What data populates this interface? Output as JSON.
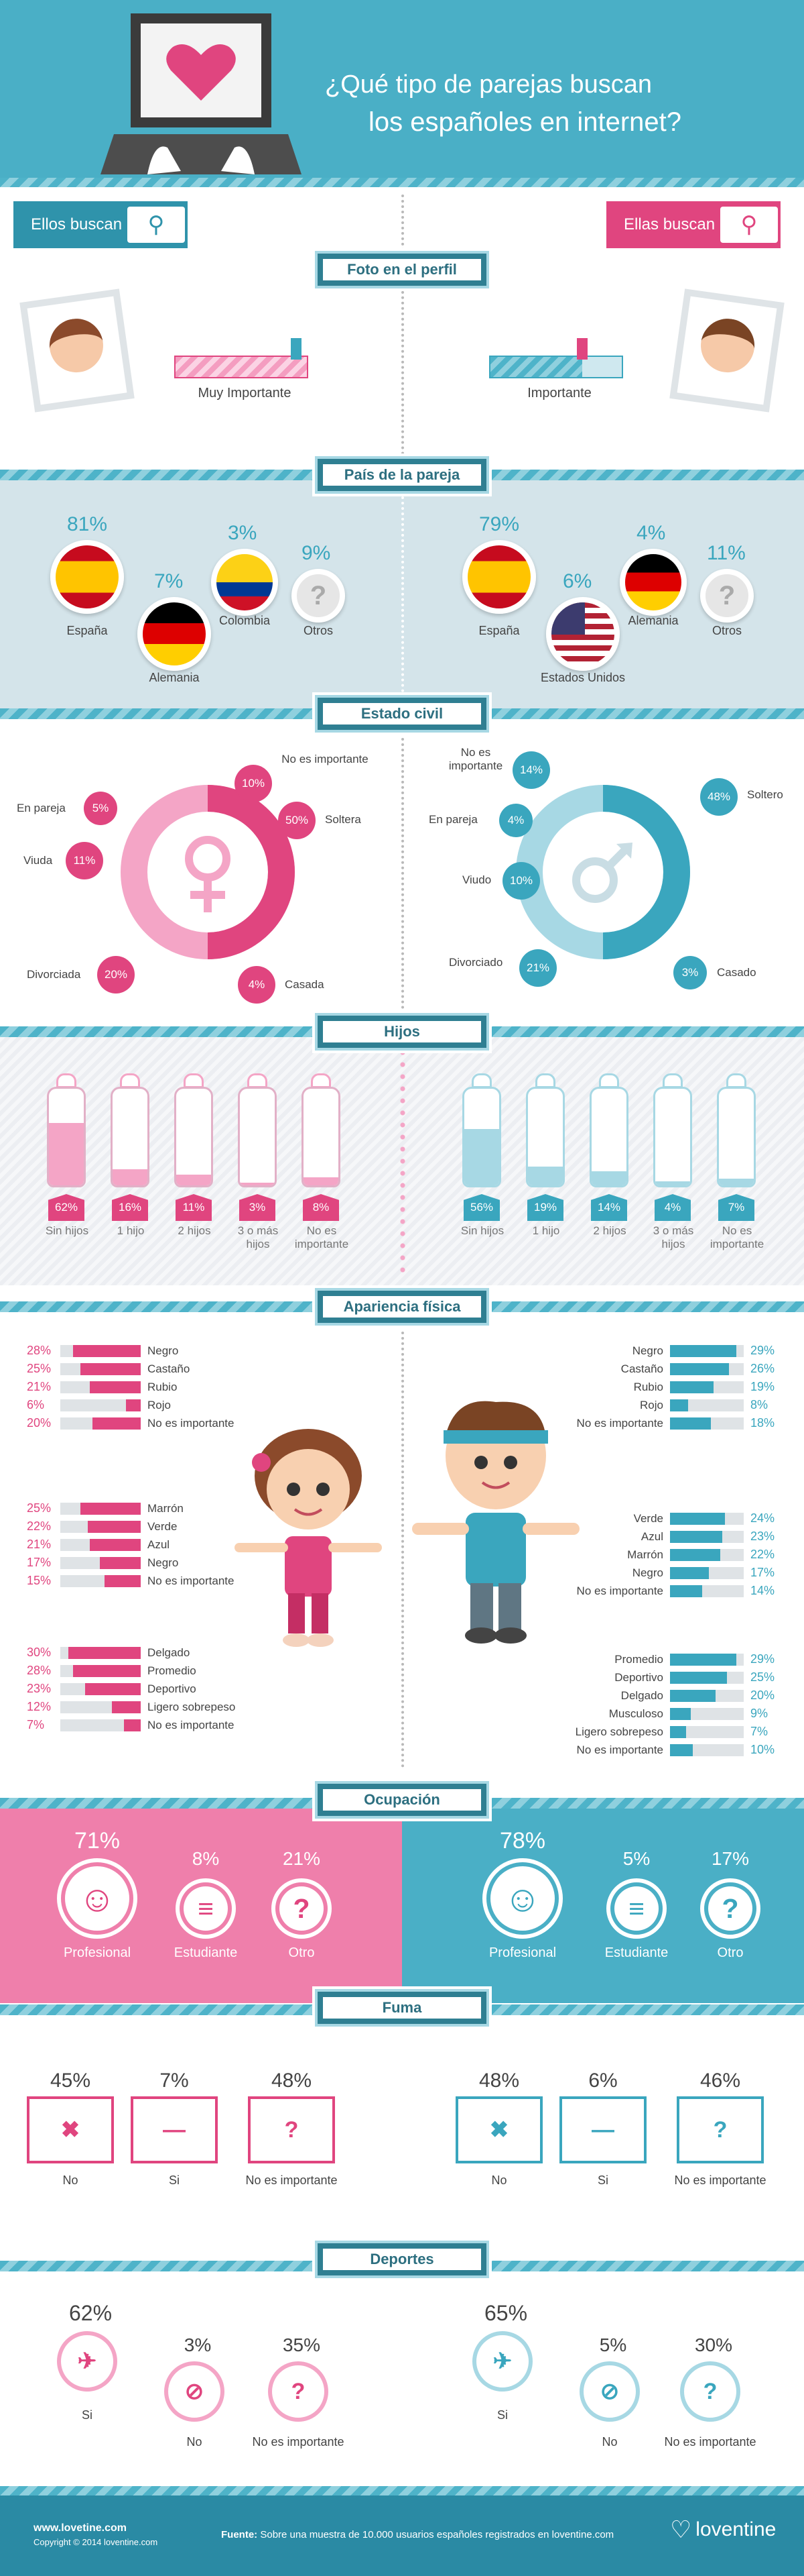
{
  "header": {
    "title_line1": "¿Qué tipo de parejas buscan",
    "title_line2": "los españoles en internet?"
  },
  "who": {
    "men": "Ellos buscan",
    "women": "Ellas buscan"
  },
  "sections": {
    "foto": "Foto en el perfil",
    "pais": "País de la pareja",
    "estado": "Estado civil",
    "hijos": "Hijos",
    "apariencia": "Apariencia física",
    "ocupacion": "Ocupación",
    "fuma": "Fuma",
    "deportes": "Deportes"
  },
  "foto": {
    "left_label": "Muy Importante",
    "left_level": 0.92,
    "right_label": "Importante",
    "right_level": 0.7
  },
  "pais": {
    "left": [
      {
        "pct": "81%",
        "name": "España"
      },
      {
        "pct": "7%",
        "name": "Alemania"
      },
      {
        "pct": "3%",
        "name": "Colombia"
      },
      {
        "pct": "9%",
        "name": "Otros"
      }
    ],
    "right": [
      {
        "pct": "79%",
        "name": "España"
      },
      {
        "pct": "6%",
        "name": "Estados Unidos"
      },
      {
        "pct": "4%",
        "name": "Alemania"
      },
      {
        "pct": "11%",
        "name": "Otros"
      }
    ],
    "other_glyph": "?"
  },
  "estado": {
    "left": [
      {
        "name": "No es importante",
        "pct": "10%"
      },
      {
        "name": "Soltera",
        "pct": "50%"
      },
      {
        "name": "Casada",
        "pct": "4%"
      },
      {
        "name": "Divorciada",
        "pct": "20%"
      },
      {
        "name": "Viuda",
        "pct": "11%"
      },
      {
        "name": "En pareja",
        "pct": "5%"
      }
    ],
    "right": [
      {
        "name": "No es importante",
        "pct": "14%"
      },
      {
        "name": "Soltero",
        "pct": "48%"
      },
      {
        "name": "Casado",
        "pct": "3%"
      },
      {
        "name": "Divorciado",
        "pct": "21%"
      },
      {
        "name": "Viudo",
        "pct": "10%"
      },
      {
        "name": "En pareja",
        "pct": "4%"
      }
    ]
  },
  "hijos": {
    "left": [
      {
        "pct": "62%",
        "name": "Sin hijos",
        "v": 62
      },
      {
        "pct": "16%",
        "name": "1 hijo",
        "v": 16
      },
      {
        "pct": "11%",
        "name": "2 hijos",
        "v": 11
      },
      {
        "pct": "3%",
        "name": "3 o más hijos",
        "v": 3
      },
      {
        "pct": "8%",
        "name": "No es importante",
        "v": 8
      }
    ],
    "right": [
      {
        "pct": "56%",
        "name": "Sin hijos",
        "v": 56
      },
      {
        "pct": "19%",
        "name": "1 hijo",
        "v": 19
      },
      {
        "pct": "14%",
        "name": "2 hijos",
        "v": 14
      },
      {
        "pct": "4%",
        "name": "3 o más hijos",
        "v": 4
      },
      {
        "pct": "7%",
        "name": "No es importante",
        "v": 7
      }
    ]
  },
  "apariencia": {
    "left_hair": [
      {
        "pct": "28%",
        "name": "Negro",
        "v": 28
      },
      {
        "pct": "25%",
        "name": "Castaño",
        "v": 25
      },
      {
        "pct": "21%",
        "name": "Rubio",
        "v": 21
      },
      {
        "pct": "6%",
        "name": "Rojo",
        "v": 6
      },
      {
        "pct": "20%",
        "name": "No es importante",
        "v": 20
      }
    ],
    "left_eyes": [
      {
        "pct": "25%",
        "name": "Marrón",
        "v": 25
      },
      {
        "pct": "22%",
        "name": "Verde",
        "v": 22
      },
      {
        "pct": "21%",
        "name": "Azul",
        "v": 21
      },
      {
        "pct": "17%",
        "name": "Negro",
        "v": 17
      },
      {
        "pct": "15%",
        "name": "No es importante",
        "v": 15
      }
    ],
    "left_body": [
      {
        "pct": "30%",
        "name": "Delgado",
        "v": 30
      },
      {
        "pct": "28%",
        "name": "Promedio",
        "v": 28
      },
      {
        "pct": "23%",
        "name": "Deportivo",
        "v": 23
      },
      {
        "pct": "12%",
        "name": "Ligero sobrepeso",
        "v": 12
      },
      {
        "pct": "7%",
        "name": "No es importante",
        "v": 7
      }
    ],
    "right_hair": [
      {
        "pct": "29%",
        "name": "Negro",
        "v": 29
      },
      {
        "pct": "26%",
        "name": "Castaño",
        "v": 26
      },
      {
        "pct": "19%",
        "name": "Rubio",
        "v": 19
      },
      {
        "pct": "8%",
        "name": "Rojo",
        "v": 8
      },
      {
        "pct": "18%",
        "name": "No es importante",
        "v": 18
      }
    ],
    "right_eyes": [
      {
        "pct": "24%",
        "name": "Verde",
        "v": 24
      },
      {
        "pct": "23%",
        "name": "Azul",
        "v": 23
      },
      {
        "pct": "22%",
        "name": "Marrón",
        "v": 22
      },
      {
        "pct": "17%",
        "name": "Negro",
        "v": 17
      },
      {
        "pct": "14%",
        "name": "No es importante",
        "v": 14
      }
    ],
    "right_body": [
      {
        "pct": "29%",
        "name": "Promedio",
        "v": 29
      },
      {
        "pct": "25%",
        "name": "Deportivo",
        "v": 25
      },
      {
        "pct": "20%",
        "name": "Delgado",
        "v": 20
      },
      {
        "pct": "9%",
        "name": "Musculoso",
        "v": 9
      },
      {
        "pct": "7%",
        "name": "Ligero sobrepeso",
        "v": 7
      },
      {
        "pct": "10%",
        "name": "No es importante",
        "v": 10
      }
    ]
  },
  "ocupacion": {
    "left": [
      {
        "pct": "71%",
        "name": "Profesional"
      },
      {
        "pct": "8%",
        "name": "Estudiante"
      },
      {
        "pct": "21%",
        "name": "Otro"
      }
    ],
    "right": [
      {
        "pct": "78%",
        "name": "Profesional"
      },
      {
        "pct": "5%",
        "name": "Estudiante"
      },
      {
        "pct": "17%",
        "name": "Otro"
      }
    ],
    "other_glyph": "?"
  },
  "fuma": {
    "left": [
      {
        "pct": "45%",
        "name": "No"
      },
      {
        "pct": "7%",
        "name": "Si"
      },
      {
        "pct": "48%",
        "name": "No es importante"
      }
    ],
    "right": [
      {
        "pct": "48%",
        "name": "No"
      },
      {
        "pct": "6%",
        "name": "Si"
      },
      {
        "pct": "46%",
        "name": "No es importante"
      }
    ],
    "other_glyph": "?"
  },
  "deportes": {
    "left": [
      {
        "pct": "62%",
        "name": "Si"
      },
      {
        "pct": "3%",
        "name": "No"
      },
      {
        "pct": "35%",
        "name": "No es importante"
      }
    ],
    "right": [
      {
        "pct": "65%",
        "name": "Si"
      },
      {
        "pct": "5%",
        "name": "No"
      },
      {
        "pct": "30%",
        "name": "No es importante"
      }
    ],
    "other_glyph": "?"
  },
  "footer": {
    "site": "www.lovetine.com",
    "copyright": "Copyright © 2014 loventine.com",
    "fuente_label": "Fuente:",
    "fuente_text": "Sobre una muestra de 10.000 usuarios españoles registrados en loventine.com",
    "brand": "loventine"
  },
  "colors": {
    "pink": "#e0457f",
    "blue": "#3aa6be",
    "light_pink": "#f4a5c6",
    "light_blue": "#a7d8e4",
    "header": "#4aafc6"
  }
}
